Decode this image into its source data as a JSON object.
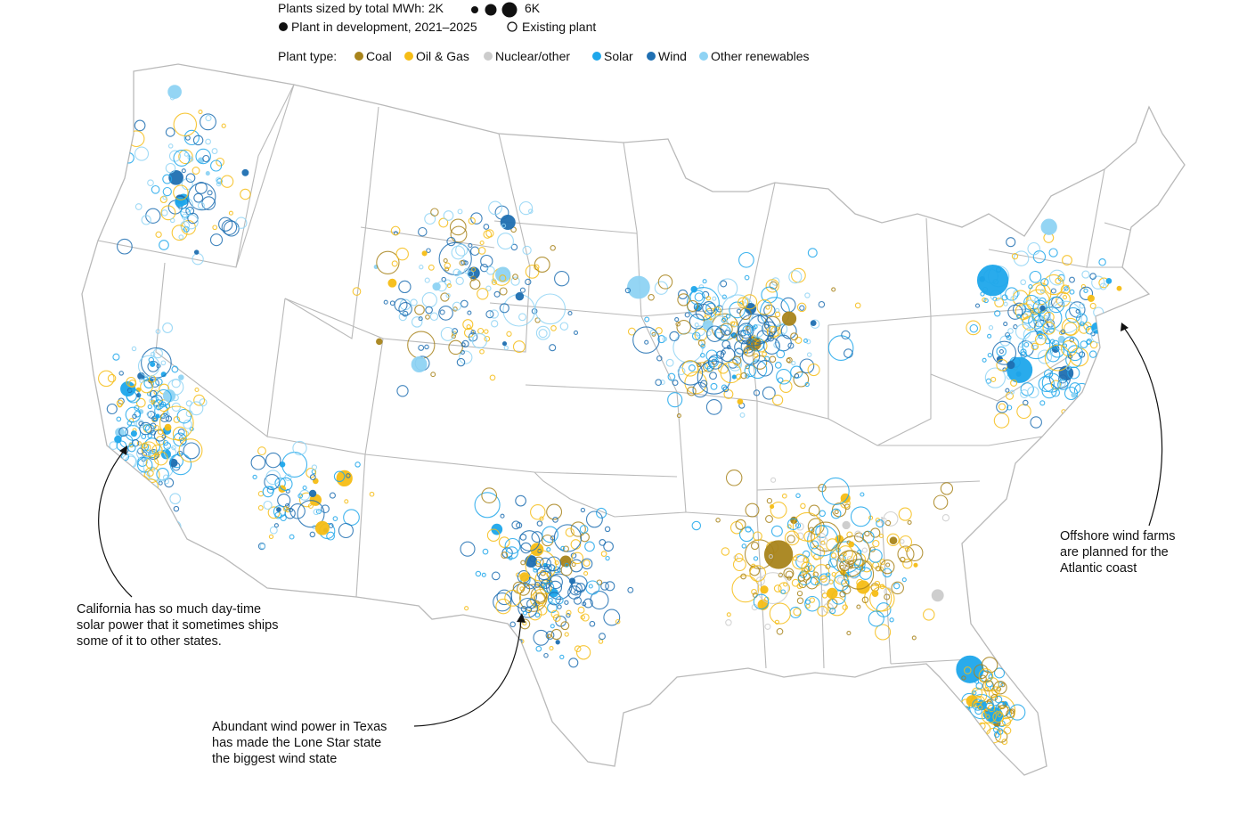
{
  "legend": {
    "size_label": "Plants sized by total MWh: 2K",
    "size_max_label": "6K",
    "development_label": "Plant in development, 2021–2025",
    "existing_label": "Existing plant",
    "type_label": "Plant type:",
    "types": [
      {
        "key": "coal",
        "label": "Coal",
        "color": "#a8841c"
      },
      {
        "key": "oil_gas",
        "label": "Oil & Gas",
        "color": "#f6bd16"
      },
      {
        "key": "nuclear_other",
        "label": "Nuclear/other",
        "color": "#cccccc"
      },
      {
        "key": "solar",
        "label": "Solar",
        "color": "#1ea7eb"
      },
      {
        "key": "wind",
        "label": "Wind",
        "color": "#1f6fb2"
      },
      {
        "key": "other_renewables",
        "label": "Other renewables",
        "color": "#8fd3f4"
      }
    ]
  },
  "annotations": {
    "california": [
      "California has so much day-time",
      "solar power that it sometimes ships",
      "some of it to other states."
    ],
    "texas": [
      "Abundant wind power in Texas",
      "has made the Lone Star state",
      "the biggest wind state"
    ],
    "atlantic": [
      "Offshore wind farms",
      "are planned for the",
      "Atlantic coast"
    ]
  },
  "map": {
    "clusters": [
      {
        "region": "Pacific Northwest",
        "mix": [
          "other_renewables",
          "solar",
          "wind",
          "oil_gas"
        ],
        "density": 90
      },
      {
        "region": "California",
        "mix": [
          "solar",
          "other_renewables",
          "oil_gas",
          "wind"
        ],
        "density": 200
      },
      {
        "region": "Southwest",
        "mix": [
          "solar",
          "oil_gas",
          "wind",
          "other_renewables"
        ],
        "density": 70
      },
      {
        "region": "Great Plains",
        "mix": [
          "wind",
          "other_renewables",
          "oil_gas",
          "coal"
        ],
        "density": 160
      },
      {
        "region": "Texas",
        "mix": [
          "wind",
          "solar",
          "oil_gas",
          "coal"
        ],
        "density": 180
      },
      {
        "region": "Midwest",
        "mix": [
          "wind",
          "solar",
          "oil_gas",
          "coal",
          "other_renewables"
        ],
        "density": 230
      },
      {
        "region": "Southeast",
        "mix": [
          "oil_gas",
          "coal",
          "solar",
          "nuclear_other"
        ],
        "density": 240
      },
      {
        "region": "Northeast",
        "mix": [
          "solar",
          "other_renewables",
          "oil_gas",
          "wind"
        ],
        "density": 220
      },
      {
        "region": "Florida",
        "mix": [
          "oil_gas",
          "solar",
          "coal"
        ],
        "density": 90
      }
    ]
  }
}
